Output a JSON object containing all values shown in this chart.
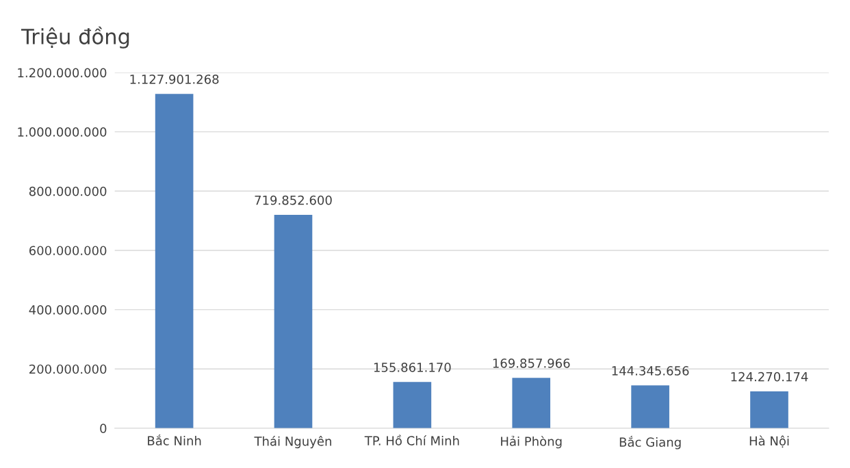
{
  "chart_data": {
    "type": "bar",
    "title": "Triệu đồng",
    "categories": [
      "Bắc Ninh",
      "Thái Nguyên",
      "TP. Hồ Chí Minh",
      "Hải Phòng",
      "Bắc Giang",
      "Hà Nội"
    ],
    "values": [
      1127901268,
      719852600,
      155861170,
      169857966,
      144345656,
      124270174
    ],
    "value_labels": [
      "1.127.901.268",
      "719.852.600",
      "155.861.170",
      "169.857.966",
      "144.345.656",
      "124.270.174"
    ],
    "color": "#4f81bd",
    "ylim": [
      0,
      1200000000
    ],
    "yticks": [
      {
        "value": 0,
        "label": "0"
      },
      {
        "value": 200000000,
        "label": "200.000.000"
      },
      {
        "value": 400000000,
        "label": "400.000.000"
      },
      {
        "value": 600000000,
        "label": "600.000.000"
      },
      {
        "value": 800000000,
        "label": "800.000.000"
      },
      {
        "value": 1000000000,
        "label": "1.000.000.000"
      },
      {
        "value": 1200000000,
        "label": "1.200.000.000"
      }
    ],
    "grid": "y",
    "legend": false
  }
}
